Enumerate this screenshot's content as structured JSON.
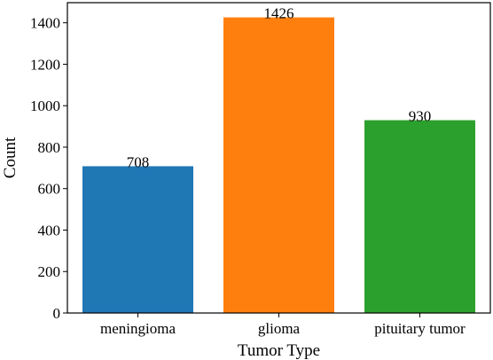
{
  "chart_data": {
    "type": "bar",
    "categories": [
      "meningioma",
      "glioma",
      "pituitary tumor"
    ],
    "values": [
      708,
      1426,
      930
    ],
    "data_labels": [
      "708",
      "1426",
      "930"
    ],
    "colors": [
      "#1f77b4",
      "#ff7f0e",
      "#2ca02c"
    ],
    "xlabel": "Tumor Type",
    "ylabel": "Count",
    "ylim": [
      0,
      1497
    ],
    "yticks": [
      0,
      200,
      400,
      600,
      800,
      1000,
      1200,
      1400
    ],
    "grid": false
  }
}
